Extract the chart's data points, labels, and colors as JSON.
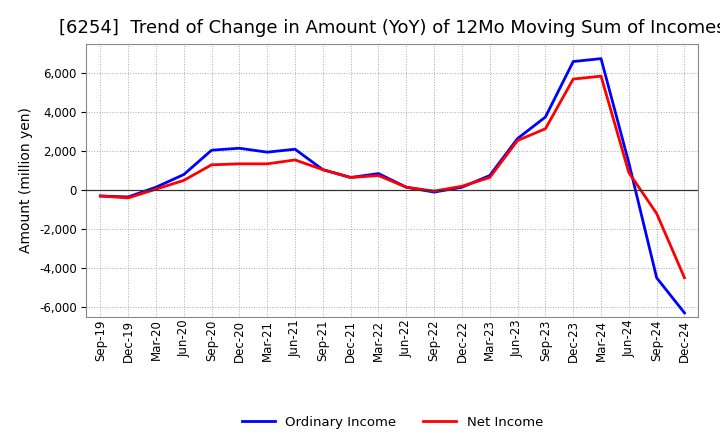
{
  "title": "[6254]  Trend of Change in Amount (YoY) of 12Mo Moving Sum of Incomes",
  "ylabel": "Amount (million yen)",
  "xlabels": [
    "Sep-19",
    "Dec-19",
    "Mar-20",
    "Jun-20",
    "Sep-20",
    "Dec-20",
    "Mar-21",
    "Jun-21",
    "Sep-21",
    "Dec-21",
    "Mar-22",
    "Jun-22",
    "Sep-22",
    "Dec-22",
    "Mar-23",
    "Jun-23",
    "Sep-23",
    "Dec-23",
    "Mar-24",
    "Jun-24",
    "Sep-24",
    "Dec-24"
  ],
  "ordinary_income": [
    -300,
    -350,
    150,
    800,
    2050,
    2150,
    1950,
    2100,
    1050,
    650,
    850,
    150,
    -100,
    150,
    750,
    2650,
    3750,
    6600,
    6750,
    1400,
    -4500,
    -6300
  ],
  "net_income": [
    -300,
    -400,
    50,
    500,
    1300,
    1350,
    1350,
    1550,
    1050,
    650,
    750,
    150,
    -50,
    200,
    650,
    2550,
    3150,
    5700,
    5850,
    900,
    -1200,
    -4500
  ],
  "ordinary_color": "#0000ff",
  "net_color": "#ff0000",
  "ylim": [
    -6500,
    7500
  ],
  "yticks": [
    -6000,
    -4000,
    -2000,
    0,
    2000,
    4000,
    6000
  ],
  "line_width": 2.0,
  "background_color": "#ffffff",
  "grid_color": "#aaaaaa",
  "legend_ordinary": "Ordinary Income",
  "legend_net": "Net Income",
  "title_fontsize": 13,
  "label_fontsize": 10,
  "tick_fontsize": 8.5
}
